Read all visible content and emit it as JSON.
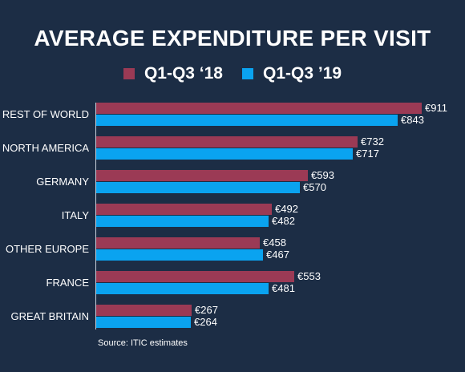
{
  "chart_data": {
    "type": "bar",
    "title": "AVERAGE EXPENDITURE PER VISIT",
    "categories": [
      "REST OF WORLD",
      "NORTH AMERICA",
      "GERMANY",
      "ITALY",
      "OTHER EUROPE",
      "FRANCE",
      "GREAT BRITAIN"
    ],
    "series": [
      {
        "name": "Q1-Q3 ‘18",
        "color": "#9b3a55",
        "values": [
          911,
          732,
          593,
          492,
          458,
          553,
          267
        ],
        "labels": [
          "€911",
          "€732",
          "€593",
          "€492",
          "€458",
          "€553",
          "€267"
        ]
      },
      {
        "name": "Q1-Q3 ’19",
        "color": "#0aa3f0",
        "values": [
          843,
          717,
          570,
          482,
          467,
          481,
          264
        ],
        "labels": [
          "€843",
          "€717",
          "€570",
          "€482",
          "€467",
          "€481",
          "€264"
        ]
      }
    ],
    "legend_position": "top",
    "orientation": "horizontal",
    "grid": false,
    "source": "Source: ITIC estimates"
  }
}
